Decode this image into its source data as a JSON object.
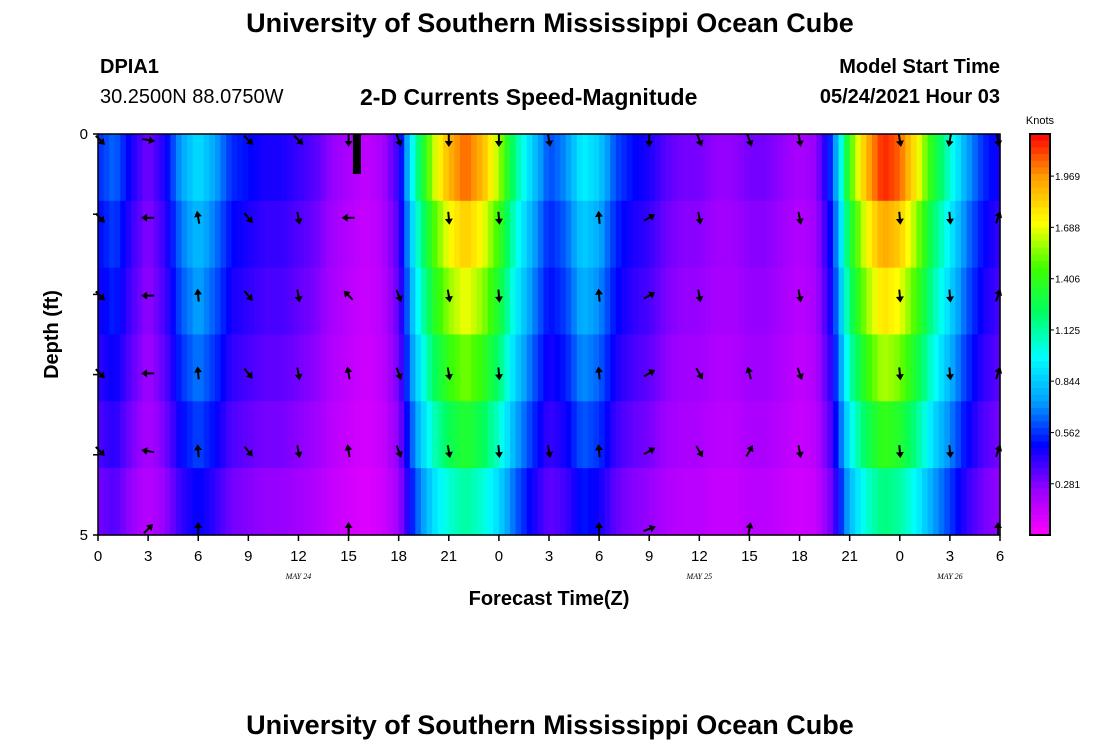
{
  "header": {
    "title": "University of Southern Mississippi Ocean Cube",
    "station": "DPIA1",
    "coords": "30.2500N  88.0750W",
    "plot_title": "2-D Currents Speed-Magnitude",
    "model_start_label": "Model Start Time",
    "model_start_value": "05/24/2021 Hour 03",
    "footer_title": "University of Southern Mississippi Ocean Cube"
  },
  "chart_data": {
    "type": "heatmap",
    "title": "2-D Currents Speed-Magnitude",
    "xlabel": "Forecast Time(Z)",
    "ylabel": "Depth (ft)",
    "x_range_hours": [
      0,
      54
    ],
    "y_range": [
      0,
      5
    ],
    "y_ticks": [
      "0",
      "5"
    ],
    "y_tick_values": [
      0,
      5
    ],
    "x_ticks": [
      "0",
      "3",
      "6",
      "9",
      "12",
      "15",
      "18",
      "21",
      "0",
      "3",
      "6",
      "9",
      "12",
      "15",
      "18",
      "21",
      "0",
      "3",
      "6"
    ],
    "date_labels": [
      {
        "label": "MAY 24",
        "hour": 12
      },
      {
        "label": "MAY 25",
        "hour": 36
      },
      {
        "label": "MAY 26",
        "hour": 51
      }
    ],
    "now_marker_hour": 15.5,
    "depth_levels": 5,
    "colorbar": {
      "unit": "Knots",
      "min": 0.0,
      "max": 2.2,
      "ticks": [
        "1.969",
        "1.688",
        "1.406",
        "1.125",
        "0.844",
        "0.562",
        "0.281"
      ],
      "tick_values": [
        1.969,
        1.688,
        1.406,
        1.125,
        0.844,
        0.562,
        0.281
      ],
      "colors": [
        "#ff00ff",
        "#9900ff",
        "#0000ff",
        "#00a0ff",
        "#00ffff",
        "#00ff60",
        "#40ff00",
        "#ffff00",
        "#ffa000",
        "#ff0000"
      ]
    },
    "speed_profile": {
      "hours": [
        0,
        1,
        2,
        3,
        4,
        5,
        6,
        7,
        8,
        9,
        10,
        11,
        12,
        13,
        14,
        15,
        16,
        17,
        18,
        19,
        20,
        21,
        22,
        23,
        24,
        25,
        26,
        27,
        28,
        29,
        30,
        31,
        32,
        33,
        34,
        35,
        36,
        37,
        38,
        39,
        40,
        41,
        42,
        43,
        44,
        45,
        46,
        47,
        48,
        49,
        50,
        51,
        52,
        53,
        54
      ],
      "values": [
        0.55,
        0.65,
        0.45,
        0.3,
        0.45,
        0.75,
        0.9,
        0.75,
        0.55,
        0.5,
        0.45,
        0.45,
        0.4,
        0.35,
        0.25,
        0.2,
        0.15,
        0.2,
        0.4,
        1.1,
        1.6,
        1.9,
        2.05,
        1.9,
        1.6,
        1.15,
        0.85,
        0.6,
        0.7,
        0.95,
        0.85,
        0.6,
        0.5,
        0.45,
        0.35,
        0.3,
        0.3,
        0.25,
        0.25,
        0.3,
        0.3,
        0.25,
        0.2,
        0.25,
        0.6,
        1.45,
        1.9,
        2.15,
        2.05,
        1.75,
        1.35,
        1.05,
        0.75,
        0.55,
        0.45
      ],
      "depth_factors": [
        1.0,
        0.9,
        0.83,
        0.75,
        0.66,
        0.55
      ]
    },
    "arrows": {
      "hours": [
        0,
        3,
        6,
        9,
        12,
        15,
        18,
        21,
        24,
        27,
        30,
        33,
        36,
        39,
        42,
        45,
        48,
        51,
        54
      ],
      "rows": [
        [
          135,
          100,
          null,
          135,
          135,
          180,
          160,
          180,
          180,
          170,
          null,
          180,
          160,
          160,
          170,
          null,
          170,
          190,
          170
        ],
        [
          135,
          270,
          350,
          140,
          170,
          270,
          null,
          175,
          175,
          null,
          355,
          60,
          170,
          null,
          170,
          null,
          175,
          175,
          20
        ],
        [
          135,
          270,
          355,
          140,
          170,
          315,
          160,
          170,
          175,
          null,
          355,
          60,
          170,
          null,
          170,
          null,
          175,
          175,
          20
        ],
        [
          135,
          270,
          355,
          140,
          170,
          350,
          160,
          170,
          175,
          null,
          355,
          60,
          150,
          345,
          160,
          null,
          175,
          175,
          20
        ],
        [
          135,
          280,
          355,
          140,
          170,
          350,
          160,
          170,
          175,
          170,
          355,
          60,
          150,
          30,
          170,
          null,
          175,
          175,
          20
        ],
        [
          null,
          45,
          0,
          null,
          null,
          0,
          null,
          null,
          null,
          null,
          0,
          70,
          null,
          10,
          null,
          null,
          null,
          null,
          0
        ]
      ]
    }
  }
}
